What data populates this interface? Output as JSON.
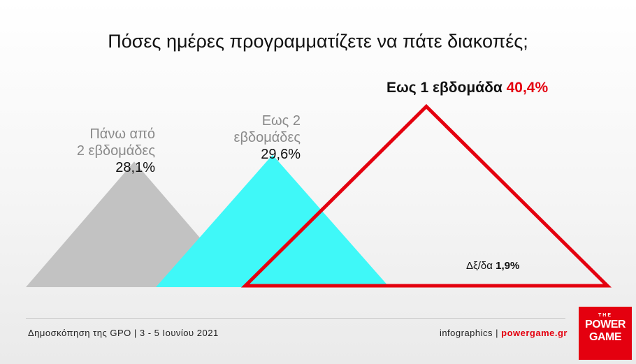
{
  "title": "Πόσες ημέρες προγραμματίζετε να πάτε διακοπές;",
  "chart_data": {
    "type": "area",
    "title": "Πόσες ημέρες προγραμματίζετε να πάτε διακοπές;",
    "categories": [
      "Πάνω από 2 εβδομάδες",
      "Εως 2 εβδομάδες",
      "Εως 1 εβδομάδα",
      "Δξ/δα"
    ],
    "values": [
      28.1,
      29.6,
      40.4,
      1.9
    ],
    "unit": "%",
    "colors": [
      "#c2c2c2",
      "#3ff8f8",
      "#e4000f",
      "#111111"
    ],
    "labels": {
      "gray_line1": "Πάνω από",
      "gray_line2": "2 εβδομάδες",
      "gray_value": "28,1%",
      "cyan_line1": "Εως 2",
      "cyan_line2": "εβδομάδες",
      "cyan_value": "29,6%",
      "red_name": "Εως 1 εβδομάδα",
      "red_value": "40,4%",
      "dk_name": "Δξ/δα",
      "dk_value": "1,9%"
    }
  },
  "footer": {
    "source": "Δημοσκόπηση της GPO | 3 - 5 Ιουνίου 2021",
    "credit_prefix": "infographics | ",
    "credit_site": "powergame.gr"
  },
  "logo": {
    "the": "THE",
    "line1": "POWER",
    "line2": "GAME"
  }
}
